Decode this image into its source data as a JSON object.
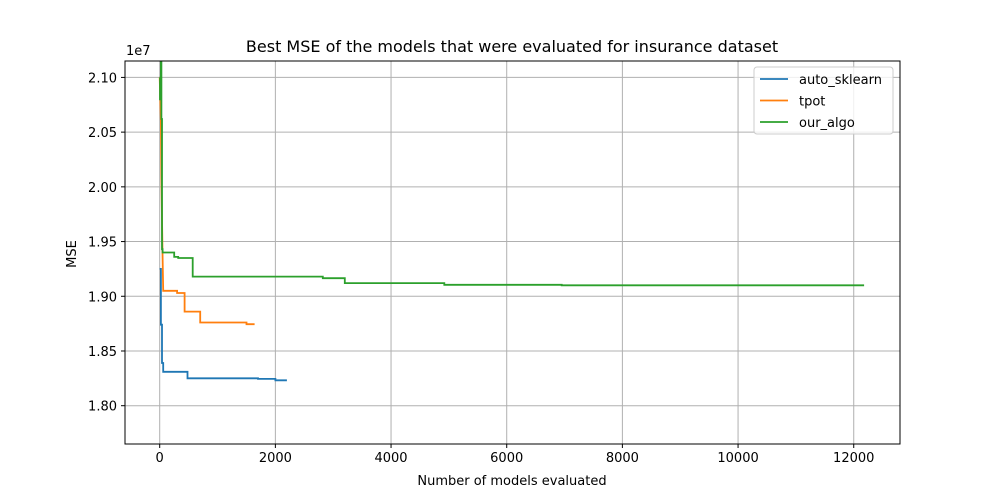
{
  "chart_data": {
    "type": "line",
    "title": "Best MSE of the models that were evaluated for insurance dataset",
    "xlabel": "Number of models evaluated",
    "ylabel": "MSE",
    "y_offset_label": "1e7",
    "xlim": [
      -600,
      12800
    ],
    "ylim": [
      17650000,
      21150000
    ],
    "x_ticks": [
      0,
      2000,
      4000,
      6000,
      8000,
      10000,
      12000
    ],
    "x_tick_labels": [
      "0",
      "2000",
      "4000",
      "6000",
      "8000",
      "10000",
      "12000"
    ],
    "y_ticks": [
      18000000,
      18500000,
      19000000,
      19500000,
      20000000,
      20500000,
      21000000
    ],
    "y_tick_labels": [
      "1.80",
      "1.85",
      "1.90",
      "1.95",
      "2.00",
      "2.05",
      "2.10"
    ],
    "grid": true,
    "legend_position": "top-right",
    "series": [
      {
        "name": "auto_sklearn",
        "color": "#1f77b4",
        "x": [
          0,
          20,
          20,
          40,
          40,
          60,
          60,
          80,
          80,
          480,
          480,
          1700,
          1700,
          2000,
          2000,
          2200
        ],
        "y": [
          19250000,
          19250000,
          18740000,
          18740000,
          18390000,
          18390000,
          18310000,
          18310000,
          18310000,
          18310000,
          18250000,
          18250000,
          18245000,
          18245000,
          18232000,
          18232000
        ]
      },
      {
        "name": "tpot",
        "color": "#ff7f0e",
        "x": [
          0,
          20,
          30,
          40,
          50,
          60,
          60,
          300,
          300,
          430,
          430,
          700,
          700,
          1500,
          1500,
          1640
        ],
        "y": [
          21000000,
          20600000,
          20100000,
          19700000,
          19350000,
          19050000,
          19050000,
          19050000,
          19030000,
          19030000,
          18860000,
          18860000,
          18760000,
          18760000,
          18745000,
          18745000
        ]
      },
      {
        "name": "our_algo",
        "color": "#2ca02c",
        "x": [
          0,
          5,
          5,
          20,
          20,
          30,
          30,
          40,
          40,
          50,
          50,
          80,
          80,
          250,
          250,
          320,
          320,
          570,
          570,
          2820,
          2820,
          3200,
          3200,
          4920,
          4920,
          6950,
          6950,
          12180
        ],
        "y": [
          21000000,
          21000000,
          20800000,
          20800000,
          21150000,
          21150000,
          20620000,
          20620000,
          19430000,
          19430000,
          19400000,
          19400000,
          19400000,
          19400000,
          19360000,
          19360000,
          19350000,
          19350000,
          19180000,
          19180000,
          19165000,
          19165000,
          19120000,
          19120000,
          19105000,
          19105000,
          19100000,
          19100000
        ]
      }
    ]
  }
}
